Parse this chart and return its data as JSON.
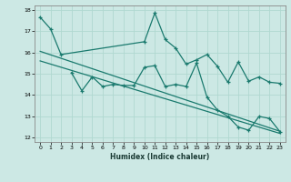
{
  "xlabel": "Humidex (Indice chaleur)",
  "background_color": "#cce8e4",
  "line_color": "#1a7a6e",
  "grid_color_major": "#b0d8d0",
  "grid_color_minor": "#d0eeea",
  "xlim": [
    -0.5,
    23.5
  ],
  "ylim": [
    11.8,
    18.2
  ],
  "yticks": [
    12,
    13,
    14,
    15,
    16,
    17,
    18
  ],
  "xticks": [
    0,
    1,
    2,
    3,
    4,
    5,
    6,
    7,
    8,
    9,
    10,
    11,
    12,
    13,
    14,
    15,
    16,
    17,
    18,
    19,
    20,
    21,
    22,
    23
  ],
  "line1_x": [
    0,
    1,
    2,
    10,
    11,
    12,
    13,
    14,
    15,
    16,
    17,
    18,
    19,
    20,
    21,
    22,
    23
  ],
  "line1_y": [
    17.65,
    17.1,
    15.9,
    16.5,
    17.85,
    16.6,
    16.2,
    15.45,
    15.65,
    15.9,
    15.35,
    14.6,
    15.55,
    14.65,
    14.85,
    14.6,
    14.55
  ],
  "line2_x": [
    3,
    4,
    5,
    6,
    7,
    8,
    9,
    10,
    11,
    12,
    13,
    14,
    15,
    16,
    17,
    18,
    19,
    20,
    21,
    22,
    23
  ],
  "line2_y": [
    15.05,
    14.2,
    14.85,
    14.4,
    14.5,
    14.45,
    14.45,
    15.3,
    15.38,
    14.4,
    14.5,
    14.4,
    15.5,
    13.9,
    13.3,
    13.0,
    12.5,
    12.35,
    13.0,
    12.9,
    12.28
  ],
  "line3_x": [
    0,
    23
  ],
  "line3_y": [
    16.05,
    12.3
  ],
  "line4_x": [
    0,
    23
  ],
  "line4_y": [
    15.6,
    12.2
  ]
}
